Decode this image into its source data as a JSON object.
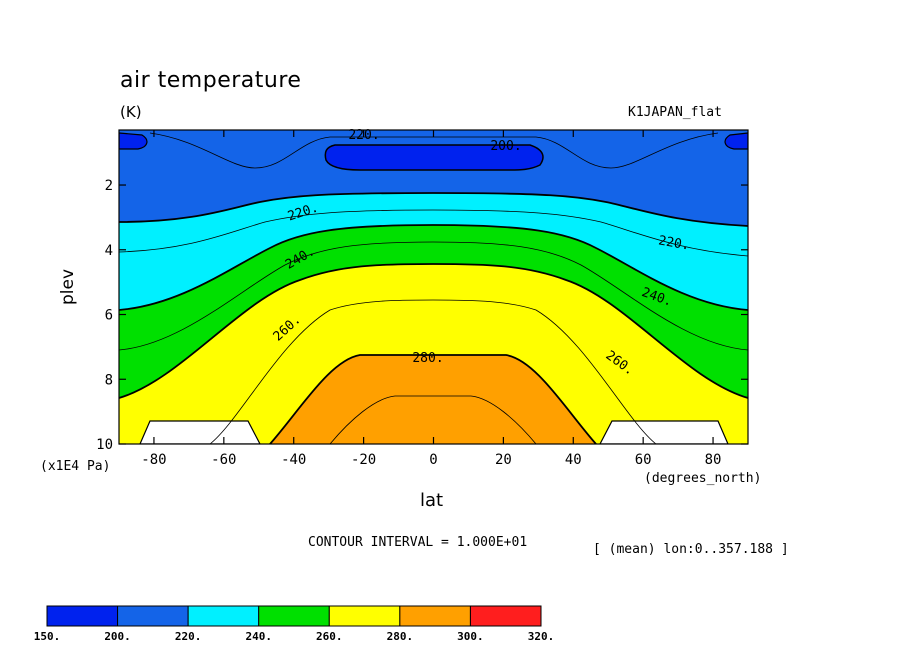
{
  "chart_data": {
    "type": "contour",
    "title": "air temperature",
    "units": "(K)",
    "model_label": "K1JAPAN_flat",
    "xlabel": "lat",
    "ylabel": "plev",
    "x_units": "(degrees_north)",
    "y_units": "(x1E4 Pa)",
    "xlim": [
      -90,
      90
    ],
    "ylim": [
      10,
      0.3
    ],
    "x_ticks": [
      "-80",
      "-60",
      "-40",
      "-20",
      "0",
      "20",
      "40",
      "60",
      "80"
    ],
    "y_ticks": [
      "2",
      "4",
      "6",
      "8",
      "10"
    ],
    "contour_interval_text": "CONTOUR INTERVAL = 1.000E+01",
    "mean_text": "[ (mean) lon:0..357.188 ]",
    "contour_labels": [
      "220.",
      "200.",
      "220.",
      "220.",
      "240.",
      "240.",
      "260.",
      "260.",
      "280."
    ],
    "colorbar": {
      "colors": [
        "#0022ee",
        "#1464e8",
        "#00f0ff",
        "#00e000",
        "#ffff00",
        "#ffa000",
        "#ff1e1e"
      ],
      "labels": [
        "150.",
        "200.",
        "220.",
        "240.",
        "260.",
        "280.",
        "300.",
        "320."
      ]
    },
    "contour_levels": [
      200,
      220,
      240,
      260,
      280
    ],
    "grid": false
  }
}
